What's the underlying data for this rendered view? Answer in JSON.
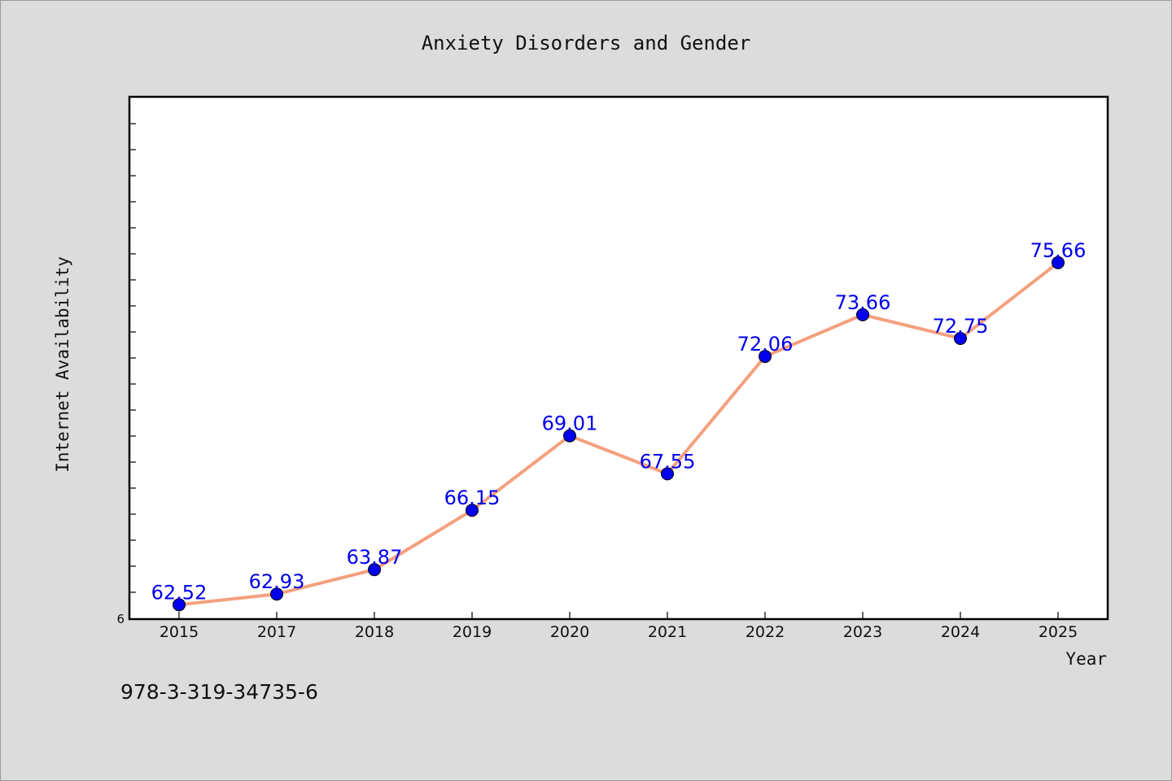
{
  "chart_data": {
    "type": "line",
    "title": "Anxiety Disorders and Gender",
    "xlabel": "Year",
    "ylabel": "Internet Availability",
    "categories": [
      "2015",
      "2017",
      "2018",
      "2019",
      "2020",
      "2021",
      "2022",
      "2023",
      "2024",
      "2025"
    ],
    "series": [
      {
        "values": [
          62.52,
          62.93,
          63.87,
          66.15,
          69.01,
          67.55,
          72.06,
          73.66,
          72.75,
          75.66
        ],
        "data_labels": [
          "62.52",
          "62.93",
          "63.87",
          "66.15",
          "69.01",
          "67.55",
          "72.06",
          "73.66",
          "72.75",
          "75.66"
        ],
        "line_color": "#f4a07e",
        "marker_color": "#0000ee",
        "label_color": "#0000ee"
      }
    ],
    "ylim": [
      62,
      82
    ],
    "y_tick_label": "6",
    "grid": false,
    "legend": "none"
  },
  "footer": {
    "isbn": "978-3-319-34735-6"
  }
}
